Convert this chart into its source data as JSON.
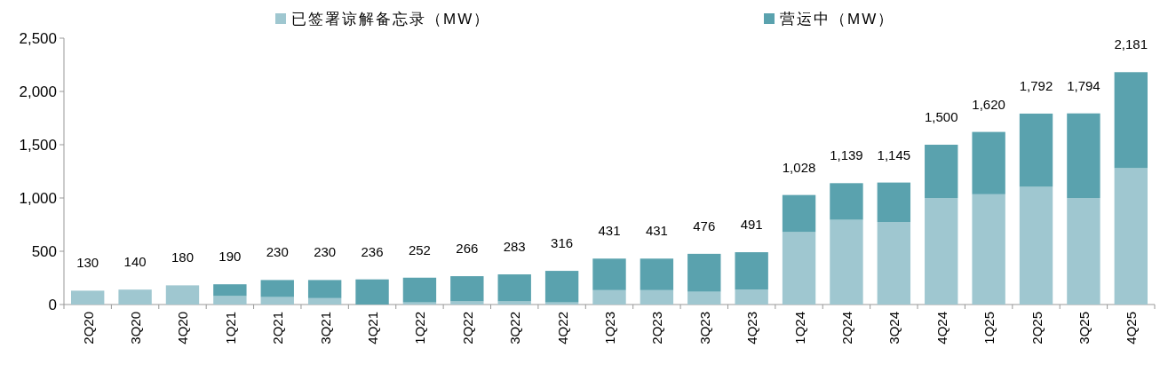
{
  "chart_data": {
    "type": "bar",
    "stacked": true,
    "legend": "top",
    "grid": false,
    "categories": [
      "2Q20",
      "3Q20",
      "4Q20",
      "1Q21",
      "2Q21",
      "3Q21",
      "4Q21",
      "1Q22",
      "2Q22",
      "3Q22",
      "4Q22",
      "1Q23",
      "2Q23",
      "3Q23",
      "4Q23",
      "1Q24",
      "2Q24",
      "3Q24",
      "4Q24",
      "1Q25",
      "2Q25",
      "3Q25",
      "4Q25"
    ],
    "series": [
      {
        "name": "已签署谅解备忘录（MW）",
        "color": "#9fc7d0",
        "values": [
          130,
          140,
          180,
          80,
          70,
          60,
          0,
          20,
          30,
          30,
          20,
          135,
          135,
          120,
          140,
          680,
          795,
          775,
          1000,
          1035,
          1105,
          1000,
          1280
        ]
      },
      {
        "name": "营运中（MW）",
        "color": "#5aa2ae",
        "values": [
          0,
          0,
          0,
          110,
          160,
          170,
          236,
          232,
          236,
          253,
          296,
          296,
          296,
          356,
          351,
          348,
          344,
          370,
          500,
          585,
          687,
          794,
          901
        ]
      }
    ],
    "totals": [
      "130",
      "140",
      "180",
      "190",
      "230",
      "230",
      "236",
      "252",
      "266",
      "283",
      "316",
      "431",
      "431",
      "476",
      "491",
      "1,028",
      "1,139",
      "1,145",
      "1,500",
      "1,620",
      "1,792",
      "1,794",
      "2,181"
    ],
    "ylim": [
      0,
      2500
    ],
    "yticks": [
      0,
      {
        "value": 500,
        "label": "500"
      },
      {
        "value": 1000,
        "label": "1,000"
      },
      {
        "value": 1500,
        "label": "1,500"
      },
      {
        "value": 2000,
        "label": "2,000"
      },
      {
        "value": 2500,
        "label": "2,500"
      }
    ]
  }
}
